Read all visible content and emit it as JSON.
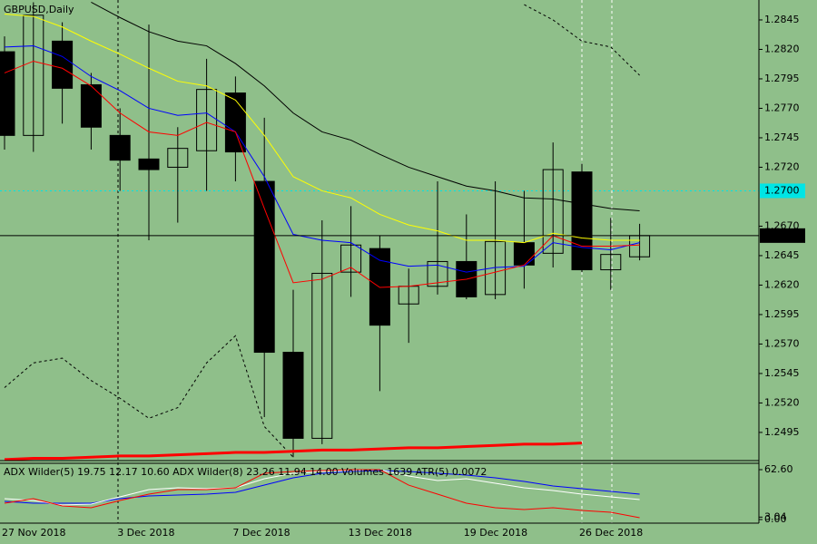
{
  "chart_data": [
    {
      "type": "candlestick",
      "title": "GBPUSD,Daily",
      "categories": [
        "27 Nov 2018",
        null,
        null,
        null,
        "3 Dec 2018",
        null,
        null,
        null,
        "7 Dec 2018",
        null,
        null,
        null,
        "13 Dec 2018",
        null,
        null,
        null,
        "19 Dec 2018",
        null,
        null,
        null,
        "26 Dec 2018",
        null,
        null
      ],
      "open": [
        1.2818,
        1.2747,
        1.2827,
        1.279,
        1.2747,
        1.2727,
        1.272,
        1.2734,
        1.2783,
        1.2708,
        1.2563,
        1.249,
        1.2631,
        1.2651,
        1.2604,
        1.2619,
        1.264,
        1.2612,
        1.2656,
        1.2647,
        1.2716,
        1.2633,
        1.2644
      ],
      "high": [
        1.2831,
        1.286,
        1.2843,
        1.28,
        1.277,
        1.2841,
        1.2754,
        1.2812,
        1.2797,
        1.2762,
        1.2616,
        1.2675,
        1.2687,
        1.2662,
        1.2634,
        1.2708,
        1.268,
        1.2708,
        1.27,
        1.2741,
        1.2723,
        1.2677,
        1.2672
      ],
      "low": [
        1.2735,
        1.2733,
        1.2757,
        1.2735,
        1.27,
        1.2658,
        1.2673,
        1.27,
        1.2708,
        1.2508,
        1.2474,
        1.2485,
        1.261,
        1.253,
        1.2571,
        1.2612,
        1.2608,
        1.2608,
        1.2617,
        1.2635,
        1.2631,
        1.2616,
        1.2641
      ],
      "close": [
        1.2747,
        1.2849,
        1.2787,
        1.2754,
        1.2726,
        1.2718,
        1.2736,
        1.2786,
        1.2733,
        1.2563,
        1.249,
        1.263,
        1.2654,
        1.2586,
        1.2619,
        1.264,
        1.261,
        1.2657,
        1.2637,
        1.2718,
        1.2633,
        1.2646,
        1.2662
      ],
      "up_color": "none",
      "down_color": "#000000",
      "series": [
        {
          "color": "#000000",
          "values": [
            null,
            null,
            null,
            1.286,
            1.2847,
            1.2835,
            1.2827,
            1.2823,
            1.2808,
            1.2789,
            1.2766,
            1.275,
            1.2743,
            1.2731,
            1.272,
            1.2712,
            1.2704,
            1.27,
            1.2694,
            1.2693,
            1.2689,
            1.2685,
            1.2683
          ]
        },
        {
          "color": "#ffff00",
          "values": [
            1.285,
            1.2848,
            1.2839,
            1.2827,
            1.2816,
            1.2804,
            1.2793,
            1.2789,
            1.2777,
            1.2747,
            1.2712,
            1.27,
            1.2694,
            1.268,
            1.2671,
            1.2666,
            1.2658,
            1.2658,
            1.2656,
            1.2664,
            1.266,
            1.2658,
            1.2658
          ]
        },
        {
          "color": "#0000ff",
          "values": [
            1.2822,
            1.2823,
            1.2814,
            1.2797,
            1.2785,
            1.277,
            1.2764,
            1.2766,
            1.275,
            1.2712,
            1.2663,
            1.2658,
            1.2656,
            1.2641,
            1.2636,
            1.2637,
            1.2631,
            1.2635,
            1.2636,
            1.2656,
            1.2652,
            1.265,
            1.2656
          ]
        },
        {
          "color": "#ff0000",
          "values": [
            1.28,
            1.281,
            1.2804,
            1.2789,
            1.2766,
            1.275,
            1.2747,
            1.2758,
            1.275,
            1.2685,
            1.2622,
            1.2625,
            1.2635,
            1.2618,
            1.2619,
            1.2622,
            1.2625,
            1.2631,
            1.2637,
            1.2662,
            1.2653,
            1.2653,
            1.2654
          ]
        },
        {
          "color": "#000000",
          "dash": true,
          "values": [
            null,
            null,
            null,
            null,
            null,
            null,
            null,
            null,
            null,
            null,
            null,
            null,
            null,
            null,
            null,
            null,
            null,
            null,
            1.2858,
            1.2845,
            1.2827,
            1.2822,
            1.2798
          ]
        },
        {
          "color": "#000000",
          "dash": true,
          "values": [
            1.2533,
            1.2554,
            1.2558,
            1.2539,
            1.2524,
            1.2507,
            1.2516,
            1.2554,
            1.2577,
            1.25,
            1.2474,
            null,
            null,
            null,
            null,
            null,
            null,
            null,
            null,
            null,
            null,
            null,
            null
          ]
        },
        {
          "color": "#ff0000",
          "width": 3,
          "values": [
            1.2472,
            1.2473,
            1.2473,
            1.2474,
            1.2475,
            1.2475,
            1.2476,
            1.2477,
            1.2478,
            1.2478,
            1.2479,
            1.248,
            1.248,
            1.2481,
            1.2482,
            1.2482,
            1.2483,
            1.2484,
            1.2485,
            1.2485,
            1.2486,
            null,
            null
          ]
        }
      ],
      "price_line": 1.2662,
      "level": {
        "value": 1.27,
        "label": "1.2700"
      },
      "ylim": [
        1.24711,
        1.28619
      ],
      "yticks": [
        1.2845,
        {
          "value": 1.282,
          "label": "1.2820"
        },
        1.2795,
        {
          "value": 1.277,
          "label": "1.2770"
        },
        1.2745,
        {
          "value": 1.272,
          "label": "1.2720"
        },
        {
          "value": 1.267,
          "label": "1.2670"
        },
        1.2645,
        {
          "value": 1.262,
          "label": "1.2620"
        },
        1.2595,
        {
          "value": 1.257,
          "label": "1.2570"
        },
        1.2545,
        {
          "value": 1.252,
          "label": "1.2520"
        },
        1.2495
      ]
    },
    {
      "type": "line",
      "title": "ADX Wilder(5) 19.75 12.17 10.60 ADX Wilder(8) 23.26 11.94 14.00 Volumes 1639 ATR(5) 0.0072",
      "series": [
        {
          "color": "#0000ff",
          "values": [
            22.8,
            20.5,
            20.5,
            20.5,
            26.2,
            29.6,
            30.7,
            31.9,
            34.1,
            43.2,
            52.3,
            58.0,
            60.3,
            61.5,
            60.3,
            58.0,
            55.8,
            52.3,
            47.8,
            42.1,
            38.7,
            35.3,
            31.9
          ]
        },
        {
          "color": "#ffffff",
          "values": [
            26.2,
            23.9,
            18.2,
            19.3,
            28.5,
            37.6,
            39.8,
            38.7,
            39.8,
            51.2,
            58.0,
            60.3,
            61.5,
            62.6,
            54.6,
            48.9,
            51.2,
            45.5,
            39.8,
            36.4,
            31.9,
            28.5,
            25.0
          ]
        },
        {
          "color": "#ff0000",
          "values": [
            20.5,
            26.2,
            17.1,
            14.8,
            23.9,
            31.9,
            37.6,
            37.6,
            39.8,
            58.0,
            60.3,
            61.5,
            62.6,
            62.6,
            43.2,
            31.9,
            20.5,
            14.8,
            12.5,
            14.8,
            11.4,
            9.1,
            2.3
          ]
        }
      ],
      "ylim": [
        -4.55,
        70.57
      ],
      "yticks": [
        {
          "value": 62.6,
          "label": "62.60"
        },
        3.04,
        {
          "value": 0,
          "label": "0.00"
        }
      ]
    }
  ]
}
